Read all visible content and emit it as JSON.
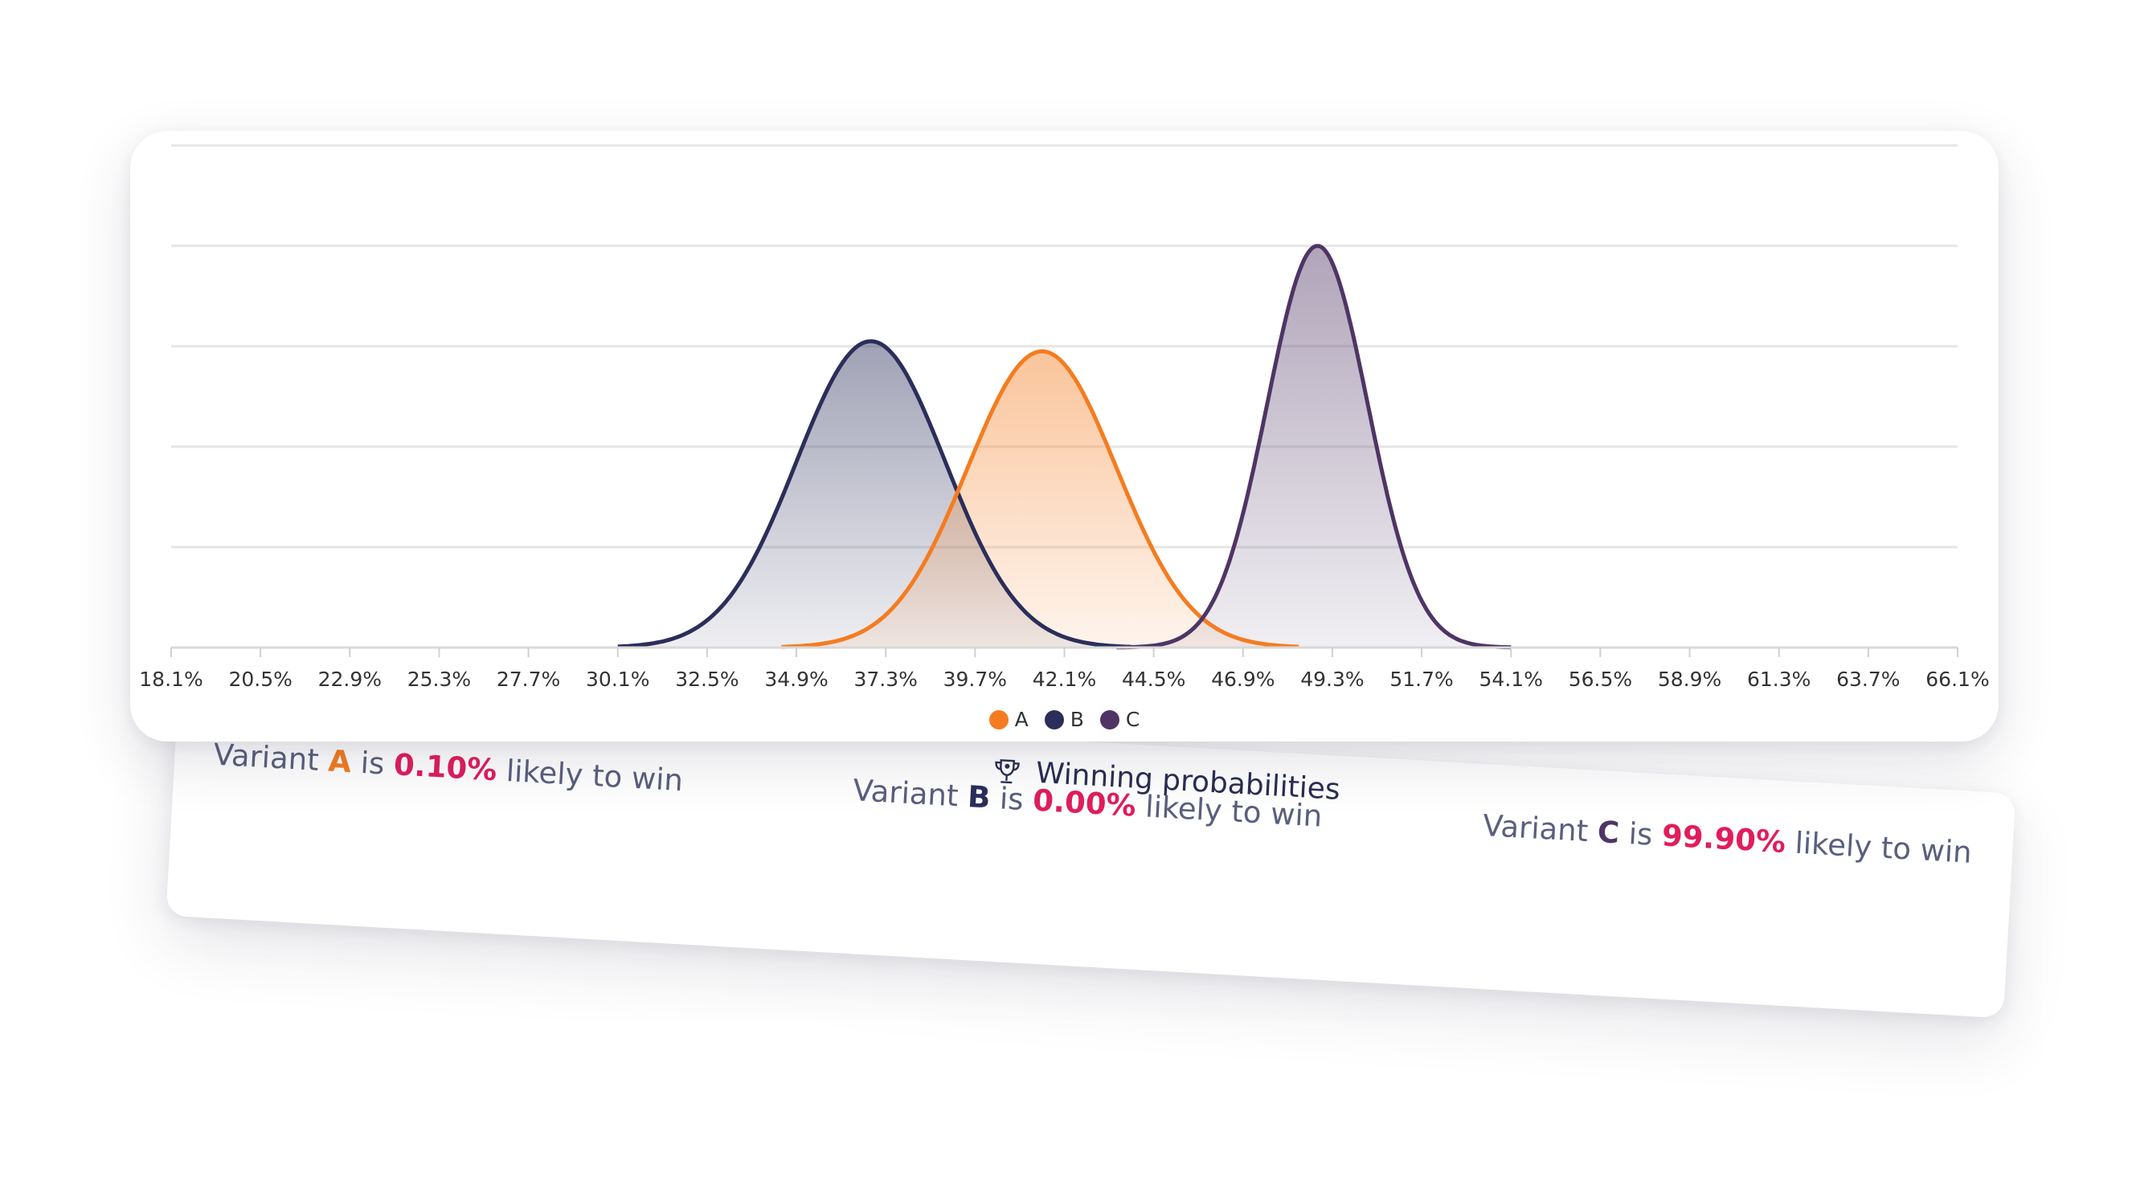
{
  "chart_data": {
    "type": "area",
    "x_ticks": [
      "18.1%",
      "20.5%",
      "22.9%",
      "25.3%",
      "27.7%",
      "30.1%",
      "32.5%",
      "34.9%",
      "37.3%",
      "39.7%",
      "42.1%",
      "44.5%",
      "46.9%",
      "49.3%",
      "51.7%",
      "54.1%",
      "56.5%",
      "58.9%",
      "61.3%",
      "63.7%",
      "66.1%"
    ],
    "xlim": [
      18.1,
      66.1
    ],
    "grid": true,
    "legend_position": "bottom",
    "series": [
      {
        "name": "A",
        "color": "#f47c20",
        "mean": 41.5,
        "sd": 2.0,
        "min": 34.5,
        "max": 48.4,
        "peak": 0.59
      },
      {
        "name": "B",
        "color": "#2b2e5a",
        "mean": 36.9,
        "sd": 2.0,
        "min": 30.1,
        "max": 43.9,
        "peak": 0.61
      },
      {
        "name": "C",
        "color": "#4e3564",
        "mean": 48.9,
        "sd": 1.35,
        "min": 43.5,
        "max": 54.1,
        "peak": 0.8
      }
    ]
  },
  "legend": [
    {
      "label": "A",
      "color": "#f47c20"
    },
    {
      "label": "B",
      "color": "#2b2e5a"
    },
    {
      "label": "C",
      "color": "#4e3564"
    }
  ],
  "probabilities": {
    "title": "Winning probabilities",
    "icon": "trophy-icon",
    "variant_word": "Variant",
    "is_word": "is",
    "suffix": "likely to win",
    "items": [
      {
        "variant": "A",
        "color": "#f47c20",
        "percent": "0.10%"
      },
      {
        "variant": "B",
        "color": "#2b2e5a",
        "percent": "0.00%"
      },
      {
        "variant": "C",
        "color": "#4e3564",
        "percent": "99.90%"
      }
    ]
  }
}
